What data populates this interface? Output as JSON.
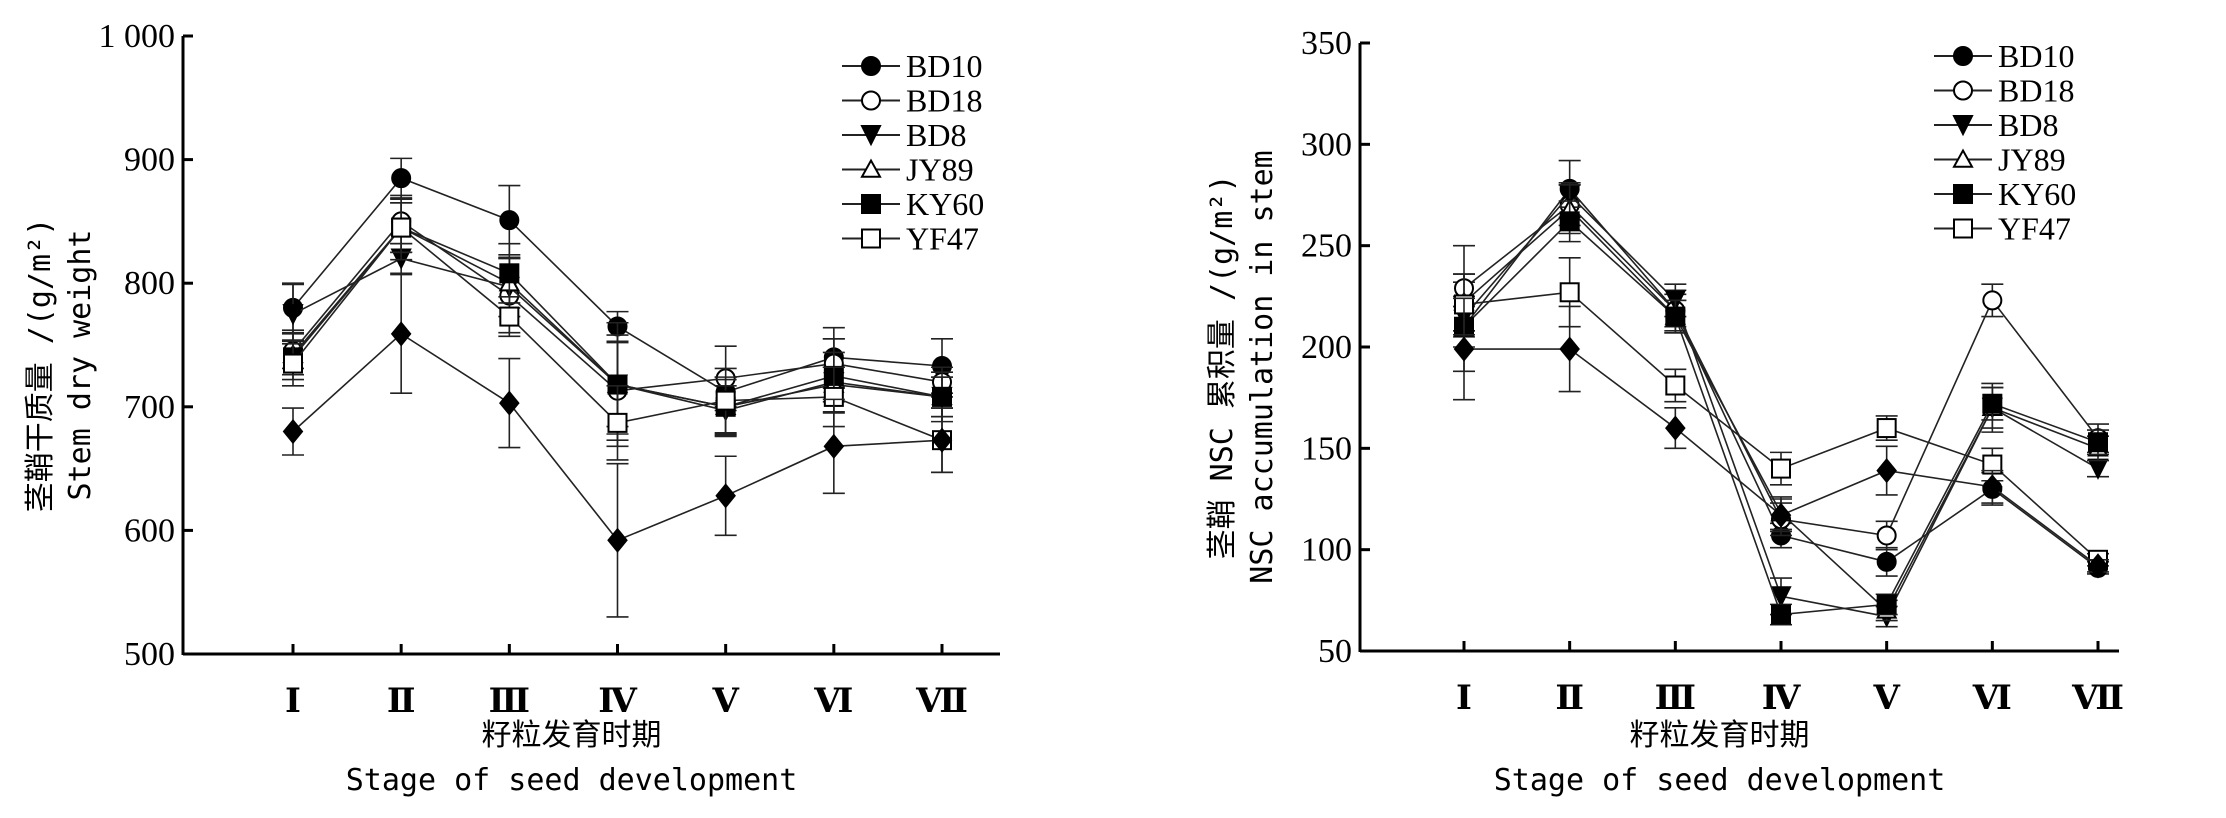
{
  "chart_data": [
    {
      "type": "line",
      "ylabel_cn": "茎鞘干质量 /(g/m²)",
      "ylabel": "Stem dry weight",
      "xlabel_cn": "籽粒发育时期",
      "xlabel": "Stage of seed development",
      "categories": [
        "Ⅰ",
        "Ⅱ",
        "Ⅲ",
        "Ⅳ",
        "Ⅴ",
        "Ⅵ",
        "Ⅶ"
      ],
      "ylim": [
        500,
        1000
      ],
      "yticks": [
        500,
        600,
        700,
        800,
        900,
        1000
      ],
      "ytick_labels": [
        "500",
        "600",
        "700",
        "800",
        "900",
        "1 000"
      ],
      "grid": false,
      "legend_placement": "top-right",
      "series": [
        {
          "name": "BD10",
          "marker": "filled-circle",
          "values": [
            780,
            885,
            851,
            765,
            712,
            740,
            733
          ],
          "err": [
            20,
            16,
            28,
            12,
            12,
            24,
            22
          ]
        },
        {
          "name": "BD18",
          "marker": "open-circle",
          "values": [
            745,
            850,
            790,
            713,
            723,
            735,
            720
          ],
          "err": [
            14,
            18,
            30,
            40,
            26,
            20,
            12
          ]
        },
        {
          "name": "BD8",
          "marker": "filled-down-triangle",
          "values": [
            775,
            820,
            797,
            718,
            697,
            720,
            708
          ],
          "err": [
            24,
            12,
            24,
            40,
            20,
            24,
            16
          ]
        },
        {
          "name": "JY89",
          "marker": "open-triangle",
          "values": [
            742,
            845,
            800,
            718,
            700,
            718,
            708
          ],
          "err": [
            20,
            20,
            20,
            50,
            22,
            14,
            16
          ]
        },
        {
          "name": "KY60",
          "marker": "filled-square",
          "values": [
            740,
            845,
            808,
            718,
            700,
            725,
            708
          ],
          "err": [
            14,
            20,
            24,
            34,
            24,
            30,
            20
          ]
        },
        {
          "name": "YF47",
          "marker": "open-square",
          "values": [
            735,
            845,
            773,
            687,
            705,
            708,
            673
          ],
          "err": [
            18,
            26,
            16,
            30,
            26,
            24,
            26
          ]
        },
        {
          "marker": "filled-diamond",
          "values": [
            680,
            759,
            703,
            592,
            628,
            668,
            673
          ],
          "err": [
            19,
            48,
            36,
            62,
            32,
            38,
            26
          ]
        }
      ]
    },
    {
      "type": "line",
      "ylabel_cn": "茎鞘 NSC 累积量 /(g/m²)",
      "ylabel": "NSC accumulation in stem",
      "xlabel_cn": "籽粒发育时期",
      "xlabel": "Stage of seed development",
      "categories": [
        "Ⅰ",
        "Ⅱ",
        "Ⅲ",
        "Ⅳ",
        "Ⅴ",
        "Ⅵ",
        "Ⅶ"
      ],
      "ylim": [
        50,
        350
      ],
      "yticks": [
        50,
        100,
        150,
        200,
        250,
        300,
        350
      ],
      "ytick_labels": [
        "50",
        "100",
        "150",
        "200",
        "250",
        "300",
        "350"
      ],
      "grid": false,
      "legend_placement": "top-right",
      "series": [
        {
          "name": "BD10",
          "marker": "filled-circle",
          "values": [
            210,
            278,
            218,
            107,
            94,
            130,
            91
          ],
          "err": [
            22,
            14,
            10,
            6,
            7,
            8,
            3
          ]
        },
        {
          "name": "BD18",
          "marker": "open-circle",
          "values": [
            229,
            270,
            218,
            115,
            107,
            223,
            155
          ],
          "err": [
            21,
            10,
            8,
            8,
            7,
            8,
            7
          ]
        },
        {
          "name": "BD8",
          "marker": "filled-down-triangle",
          "values": [
            215,
            275,
            223,
            77,
            67,
            170,
            140
          ],
          "err": [
            10,
            6,
            8,
            9,
            5,
            12,
            4
          ]
        },
        {
          "name": "JY89",
          "marker": "open-triangle",
          "values": [
            222,
            268,
            215,
            118,
            70,
            170,
            150
          ],
          "err": [
            14,
            12,
            8,
            8,
            5,
            10,
            6
          ]
        },
        {
          "name": "KY60",
          "marker": "filled-square",
          "values": [
            210,
            262,
            215,
            68,
            73,
            172,
            153
          ],
          "err": [
            10,
            10,
            8,
            5,
            5,
            8,
            6
          ]
        },
        {
          "name": "YF47",
          "marker": "open-square",
          "values": [
            221,
            227,
            181,
            140,
            160,
            142,
            95
          ],
          "err": [
            15,
            17,
            8,
            8,
            6,
            8,
            3
          ]
        },
        {
          "marker": "filled-diamond",
          "values": [
            199,
            199,
            160,
            117,
            139,
            131,
            92
          ],
          "err": [
            25,
            21,
            10,
            8,
            12,
            8,
            3
          ]
        }
      ]
    }
  ]
}
